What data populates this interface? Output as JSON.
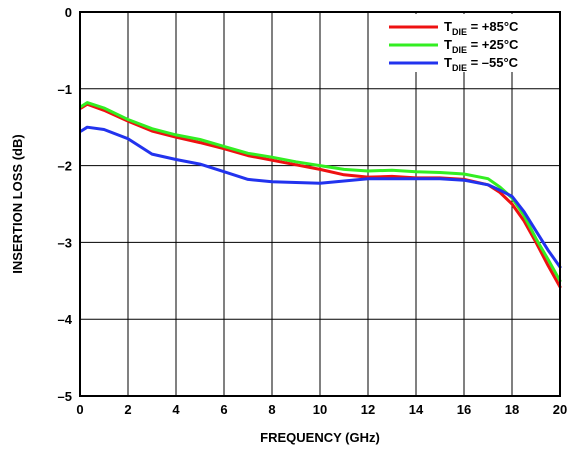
{
  "chart_data": {
    "type": "line",
    "xlabel": "FREQUENCY (GHz)",
    "ylabel": "INSERTION LOSS (dB)",
    "xlim": [
      0,
      20
    ],
    "ylim": [
      -5,
      0
    ],
    "xticks": [
      "0",
      "2",
      "4",
      "6",
      "8",
      "10",
      "12",
      "14",
      "16",
      "18",
      "20"
    ],
    "yticks": [
      "0",
      "–1",
      "–2",
      "–3",
      "–4",
      "–5"
    ],
    "grid": true,
    "legend_position": "top-right",
    "series": [
      {
        "legend": {
          "prefix": "T",
          "sub": "DIE",
          "suffix": " = +85°C"
        },
        "color": "#ee1111",
        "x": [
          0.05,
          0.3,
          1,
          2,
          3,
          4,
          5,
          6,
          7,
          8,
          9,
          10,
          11,
          12,
          13,
          14,
          15,
          16,
          17,
          17.5,
          18,
          18.5,
          19,
          19.5,
          20
        ],
        "y": [
          -1.25,
          -1.2,
          -1.28,
          -1.42,
          -1.55,
          -1.63,
          -1.7,
          -1.78,
          -1.87,
          -1.93,
          -1.99,
          -2.05,
          -2.12,
          -2.15,
          -2.14,
          -2.16,
          -2.16,
          -2.18,
          -2.25,
          -2.35,
          -2.5,
          -2.72,
          -3.0,
          -3.3,
          -3.58
        ]
      },
      {
        "legend": {
          "prefix": "T",
          "sub": "DIE",
          "suffix": " = +25°C"
        },
        "color": "#33ee22",
        "x": [
          0.05,
          0.3,
          1,
          2,
          3,
          4,
          5,
          6,
          7,
          8,
          9,
          10,
          11,
          12,
          13,
          14,
          15,
          16,
          17,
          17.5,
          18,
          18.5,
          19,
          19.5,
          20
        ],
        "y": [
          -1.23,
          -1.18,
          -1.25,
          -1.4,
          -1.52,
          -1.6,
          -1.66,
          -1.75,
          -1.84,
          -1.89,
          -1.95,
          -2.0,
          -2.05,
          -2.07,
          -2.06,
          -2.08,
          -2.09,
          -2.11,
          -2.17,
          -2.28,
          -2.42,
          -2.65,
          -2.95,
          -3.22,
          -3.5
        ]
      },
      {
        "legend": {
          "prefix": "T",
          "sub": "DIE",
          "suffix": " = –55°C"
        },
        "color": "#2233ee",
        "x": [
          0.05,
          0.3,
          1,
          2,
          3,
          4,
          5,
          6,
          7,
          8,
          9,
          10,
          11,
          12,
          13,
          14,
          15,
          16,
          17,
          17.5,
          18,
          18.5,
          19,
          19.5,
          20
        ],
        "y": [
          -1.55,
          -1.5,
          -1.53,
          -1.65,
          -1.85,
          -1.92,
          -1.98,
          -2.08,
          -2.18,
          -2.21,
          -2.22,
          -2.23,
          -2.2,
          -2.17,
          -2.17,
          -2.17,
          -2.17,
          -2.19,
          -2.25,
          -2.32,
          -2.4,
          -2.6,
          -2.85,
          -3.1,
          -3.32
        ]
      }
    ]
  }
}
